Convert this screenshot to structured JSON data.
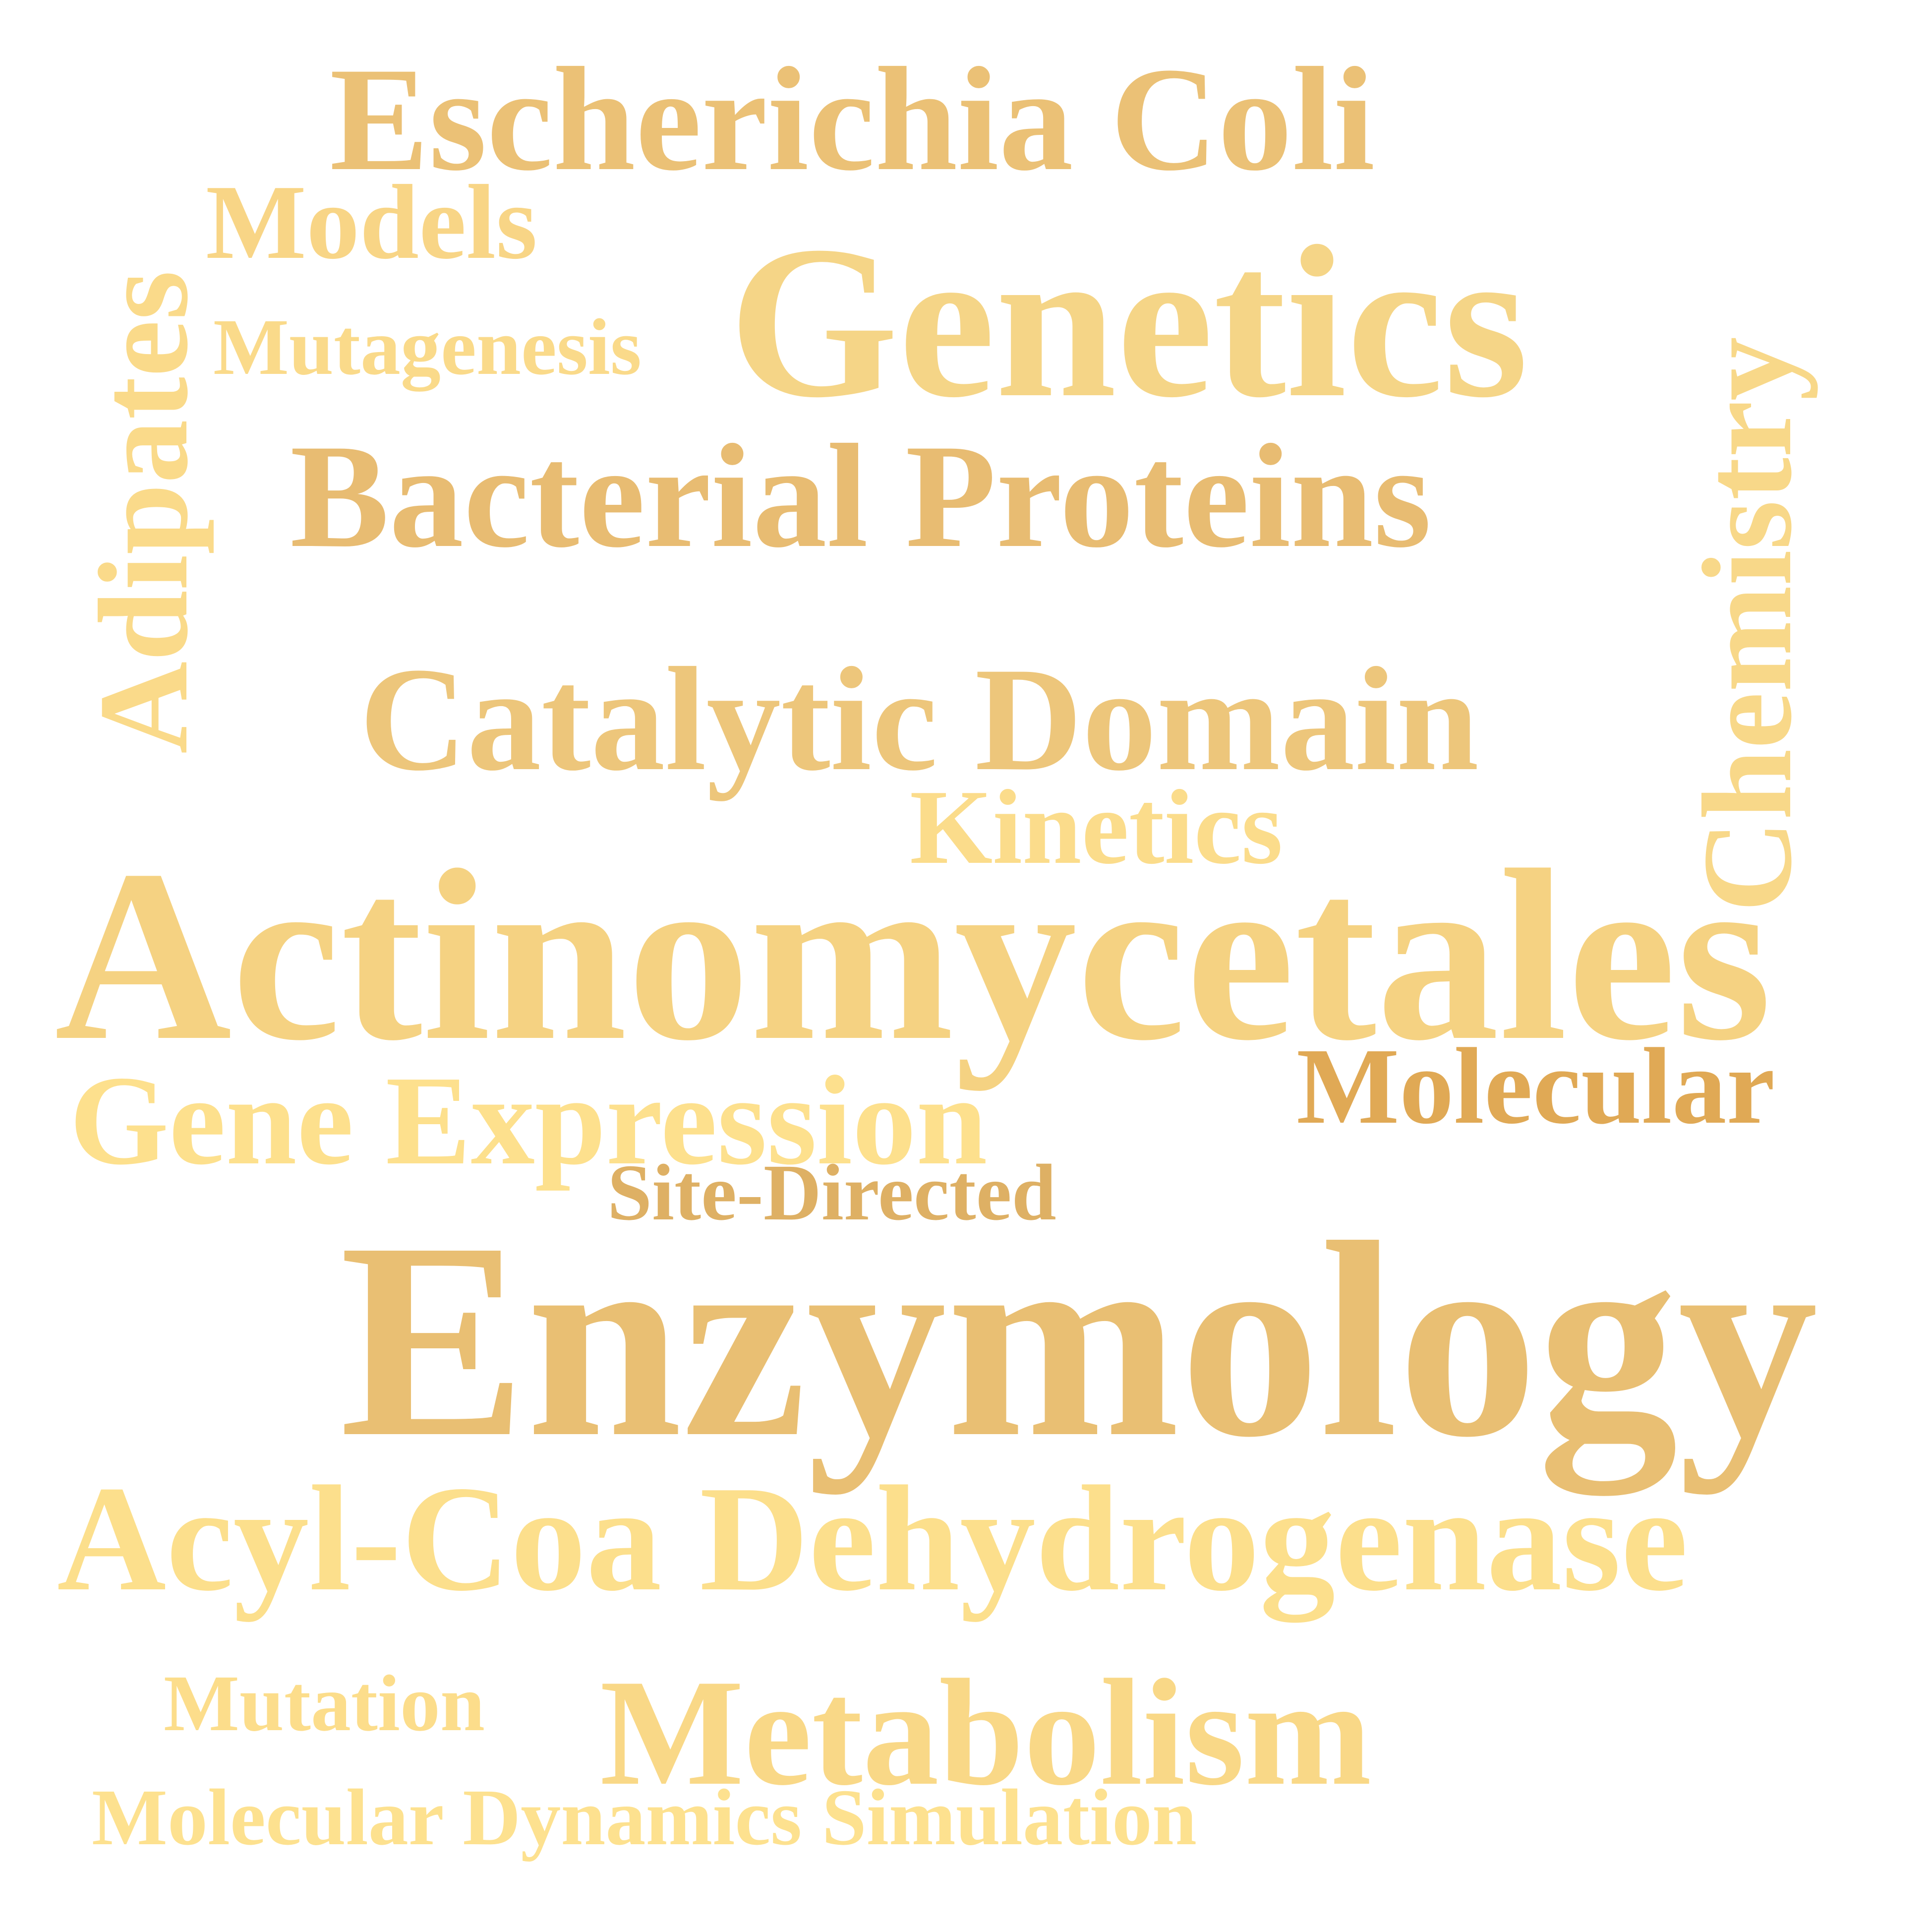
{
  "word_cloud": {
    "words": [
      {
        "id": "escherichia",
        "text": "Escherichia Coli",
        "color": "#EBC176",
        "orientation": "horizontal"
      },
      {
        "id": "models",
        "text": "Models",
        "color": "#F8D586",
        "orientation": "horizontal"
      },
      {
        "id": "mutagenesis",
        "text": "Mutagenesis",
        "color": "#FADA8A",
        "orientation": "horizontal"
      },
      {
        "id": "genetics",
        "text": "Genetics",
        "color": "#F5D587",
        "orientation": "horizontal"
      },
      {
        "id": "bacterial",
        "text": "Bacterial Proteins",
        "color": "#E8BC72",
        "orientation": "horizontal"
      },
      {
        "id": "catalytic",
        "text": "Catalytic Domain",
        "color": "#EDC67B",
        "orientation": "horizontal"
      },
      {
        "id": "kinetics",
        "text": "Kinetics",
        "color": "#FBDC8B",
        "orientation": "horizontal"
      },
      {
        "id": "actino",
        "text": "Actinomycetales",
        "color": "#F5D282",
        "orientation": "horizontal"
      },
      {
        "id": "molecular",
        "text": "Molecular",
        "color": "#E0A955",
        "orientation": "horizontal"
      },
      {
        "id": "geneexpr",
        "text": "Gene Expression",
        "color": "#FDE08D",
        "orientation": "horizontal"
      },
      {
        "id": "sitedir",
        "text": "Site-Directed",
        "color": "#DEB064",
        "orientation": "horizontal"
      },
      {
        "id": "enzymology",
        "text": "Enzymology",
        "color": "#E9BF73",
        "orientation": "horizontal"
      },
      {
        "id": "acylcoa",
        "text": "Acyl-Coa Dehydrogenase",
        "color": "#FCDF8C",
        "orientation": "horizontal"
      },
      {
        "id": "mutation",
        "text": "Mutation",
        "color": "#FCDD8B",
        "orientation": "horizontal"
      },
      {
        "id": "metabolism",
        "text": "Metabolism",
        "color": "#F9D887",
        "orientation": "horizontal"
      },
      {
        "id": "moldyn",
        "text": "Molecular Dynamics Simulation",
        "color": "#FDE18F",
        "orientation": "horizontal"
      },
      {
        "id": "adipates",
        "text": "Adipates",
        "color": "#FADA8A",
        "orientation": "vertical"
      },
      {
        "id": "chemistry",
        "text": "Chemistry",
        "color": "#F8D889",
        "orientation": "vertical"
      }
    ]
  }
}
